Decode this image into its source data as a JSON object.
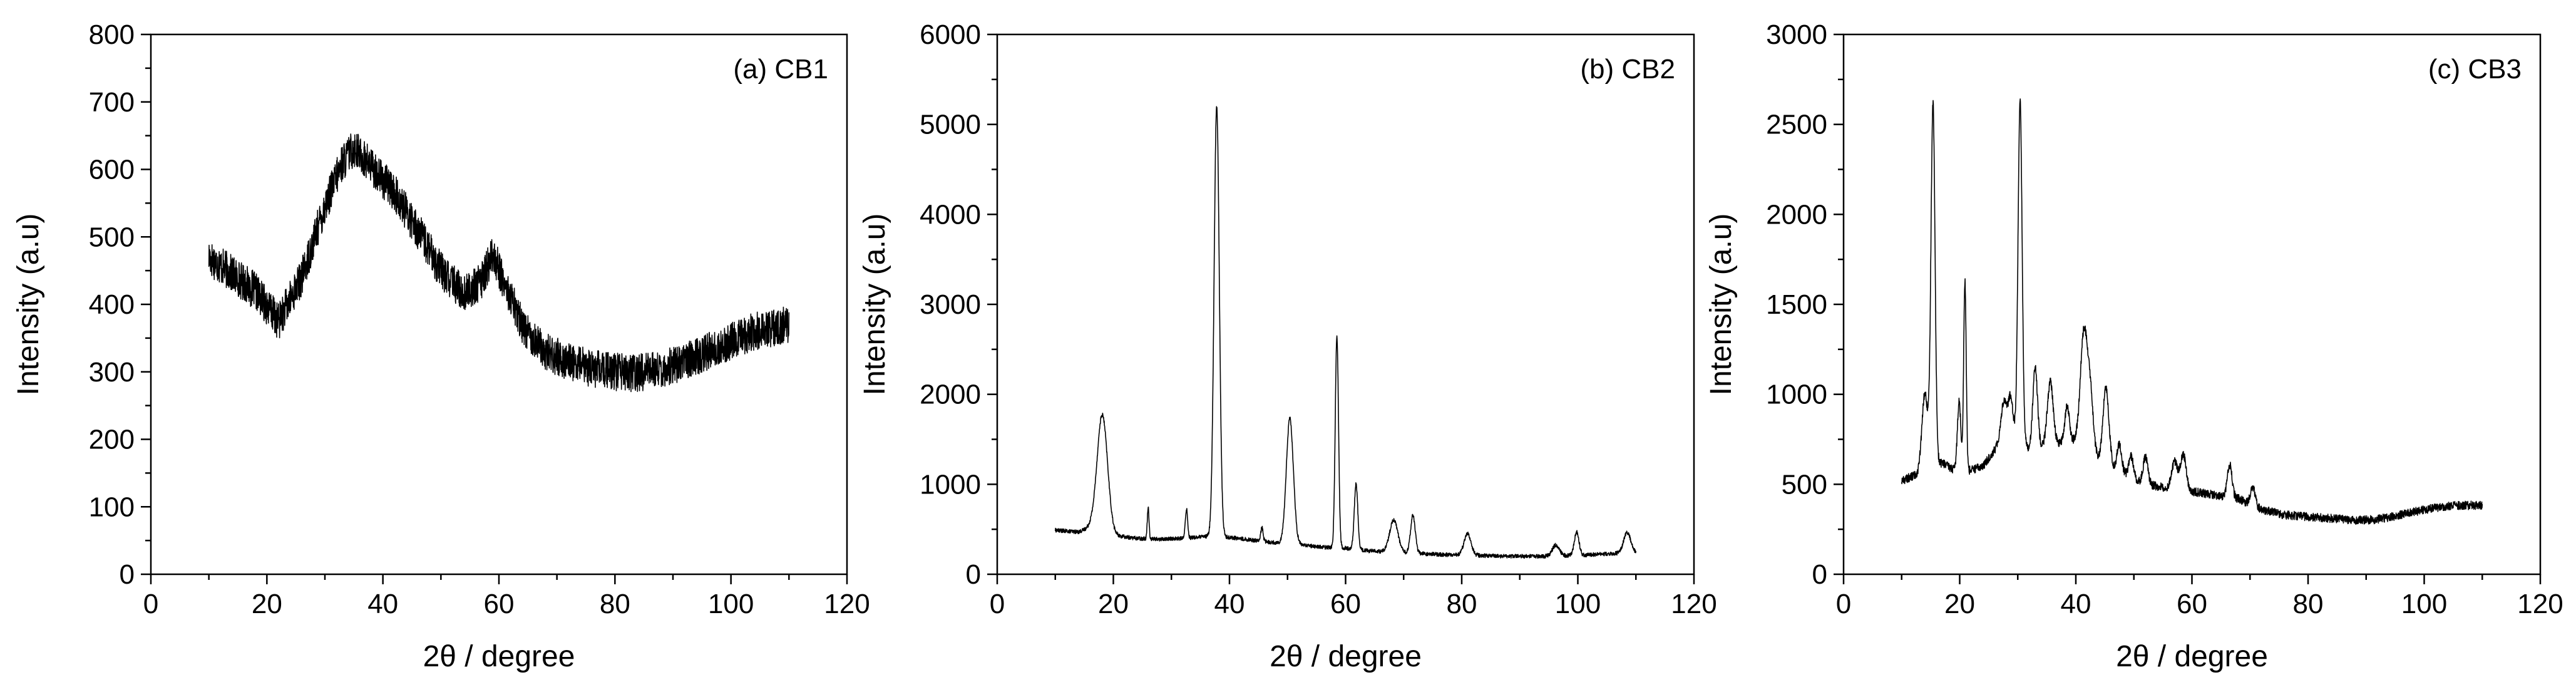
{
  "chart_data": [
    {
      "type": "line",
      "label": "(a) CB1",
      "xlabel": "2θ / degree",
      "ylabel": "Intensity (a.u)",
      "xlim": [
        0,
        120
      ],
      "ylim": [
        0,
        800
      ],
      "xticks": [
        "0",
        "20",
        "40",
        "60",
        "80",
        "100",
        "120"
      ],
      "yticks": [
        "0",
        "100",
        "200",
        "300",
        "400",
        "500",
        "600",
        "700",
        "800"
      ],
      "x_range": [
        10,
        110
      ],
      "noise": 28,
      "points": [
        [
          10,
          470
        ],
        [
          14,
          445
        ],
        [
          18,
          420
        ],
        [
          22,
          375
        ],
        [
          26,
          440
        ],
        [
          30,
          545
        ],
        [
          33,
          610
        ],
        [
          35,
          632
        ],
        [
          38,
          605
        ],
        [
          42,
          565
        ],
        [
          46,
          510
        ],
        [
          50,
          450
        ],
        [
          54,
          415
        ],
        [
          57,
          435
        ],
        [
          59,
          475
        ],
        [
          61,
          430
        ],
        [
          64,
          370
        ],
        [
          68,
          330
        ],
        [
          72,
          315
        ],
        [
          76,
          305
        ],
        [
          80,
          300
        ],
        [
          84,
          298
        ],
        [
          88,
          305
        ],
        [
          92,
          315
        ],
        [
          96,
          330
        ],
        [
          100,
          345
        ],
        [
          104,
          360
        ],
        [
          110,
          370
        ]
      ],
      "peaks": []
    },
    {
      "type": "line",
      "label": "(b) CB2",
      "xlabel": "2θ / degree",
      "ylabel": "Intensity (a.u)",
      "xlim": [
        0,
        120
      ],
      "ylim": [
        0,
        6000
      ],
      "xticks": [
        "0",
        "20",
        "40",
        "60",
        "80",
        "100",
        "120"
      ],
      "yticks": [
        "0",
        "1000",
        "2000",
        "3000",
        "4000",
        "5000",
        "6000"
      ],
      "x_range": [
        10,
        110
      ],
      "noise": 22,
      "points": [
        [
          10,
          490
        ],
        [
          14,
          470
        ],
        [
          16,
          520
        ],
        [
          20,
          430
        ],
        [
          24,
          400
        ],
        [
          28,
          390
        ],
        [
          32,
          400
        ],
        [
          36,
          420
        ],
        [
          40,
          410
        ],
        [
          44,
          380
        ],
        [
          48,
          350
        ],
        [
          52,
          330
        ],
        [
          56,
          300
        ],
        [
          60,
          290
        ],
        [
          64,
          260
        ],
        [
          70,
          240
        ],
        [
          76,
          220
        ],
        [
          82,
          210
        ],
        [
          88,
          200
        ],
        [
          94,
          200
        ],
        [
          100,
          210
        ],
        [
          106,
          230
        ],
        [
          110,
          240
        ]
      ],
      "peaks": [
        [
          18.1,
          1300,
          0.9
        ],
        [
          26.0,
          350,
          0.15
        ],
        [
          32.6,
          320,
          0.2
        ],
        [
          37.8,
          4780,
          0.45
        ],
        [
          45.6,
          150,
          0.2
        ],
        [
          50.4,
          1400,
          0.6
        ],
        [
          58.5,
          2360,
          0.28
        ],
        [
          61.8,
          730,
          0.3
        ],
        [
          68.3,
          360,
          0.7
        ],
        [
          71.6,
          420,
          0.4
        ],
        [
          81.0,
          240,
          0.6
        ],
        [
          96.2,
          120,
          0.6
        ],
        [
          99.8,
          260,
          0.4
        ],
        [
          108.5,
          230,
          0.6
        ]
      ]
    },
    {
      "type": "line",
      "label": "(c) CB3",
      "xlabel": "2θ / degree",
      "ylabel": "Intensity (a.u)",
      "xlim": [
        0,
        120
      ],
      "ylim": [
        0,
        3000
      ],
      "xticks": [
        "0",
        "20",
        "40",
        "60",
        "80",
        "100",
        "120"
      ],
      "yticks": [
        "0",
        "500",
        "1000",
        "1500",
        "2000",
        "2500",
        "3000"
      ],
      "x_range": [
        10,
        110
      ],
      "noise": 24,
      "points": [
        [
          10,
          520
        ],
        [
          13,
          560
        ],
        [
          17,
          620
        ],
        [
          20,
          560
        ],
        [
          24,
          600
        ],
        [
          28,
          780
        ],
        [
          32,
          700
        ],
        [
          36,
          720
        ],
        [
          40,
          740
        ],
        [
          44,
          640
        ],
        [
          48,
          560
        ],
        [
          52,
          500
        ],
        [
          56,
          480
        ],
        [
          60,
          460
        ],
        [
          64,
          440
        ],
        [
          68,
          420
        ],
        [
          72,
          360
        ],
        [
          76,
          330
        ],
        [
          80,
          320
        ],
        [
          84,
          310
        ],
        [
          88,
          300
        ],
        [
          92,
          305
        ],
        [
          96,
          330
        ],
        [
          100,
          360
        ],
        [
          105,
          380
        ],
        [
          110,
          385
        ]
      ],
      "peaks": [
        [
          14.0,
          430,
          0.5
        ],
        [
          15.4,
          2020,
          0.35
        ],
        [
          19.9,
          400,
          0.3
        ],
        [
          20.9,
          1060,
          0.22
        ],
        [
          27.6,
          200,
          0.5
        ],
        [
          28.8,
          220,
          0.4
        ],
        [
          30.4,
          1900,
          0.35
        ],
        [
          33.0,
          440,
          0.4
        ],
        [
          35.6,
          350,
          0.5
        ],
        [
          38.5,
          200,
          0.4
        ],
        [
          41.4,
          640,
          0.6
        ],
        [
          42.5,
          300,
          0.5
        ],
        [
          45.2,
          420,
          0.5
        ],
        [
          47.5,
          150,
          0.4
        ],
        [
          49.5,
          120,
          0.4
        ],
        [
          52.0,
          150,
          0.4
        ],
        [
          57.0,
          150,
          0.5
        ],
        [
          58.5,
          200,
          0.5
        ],
        [
          66.5,
          180,
          0.4
        ],
        [
          70.5,
          100,
          0.4
        ]
      ]
    }
  ]
}
